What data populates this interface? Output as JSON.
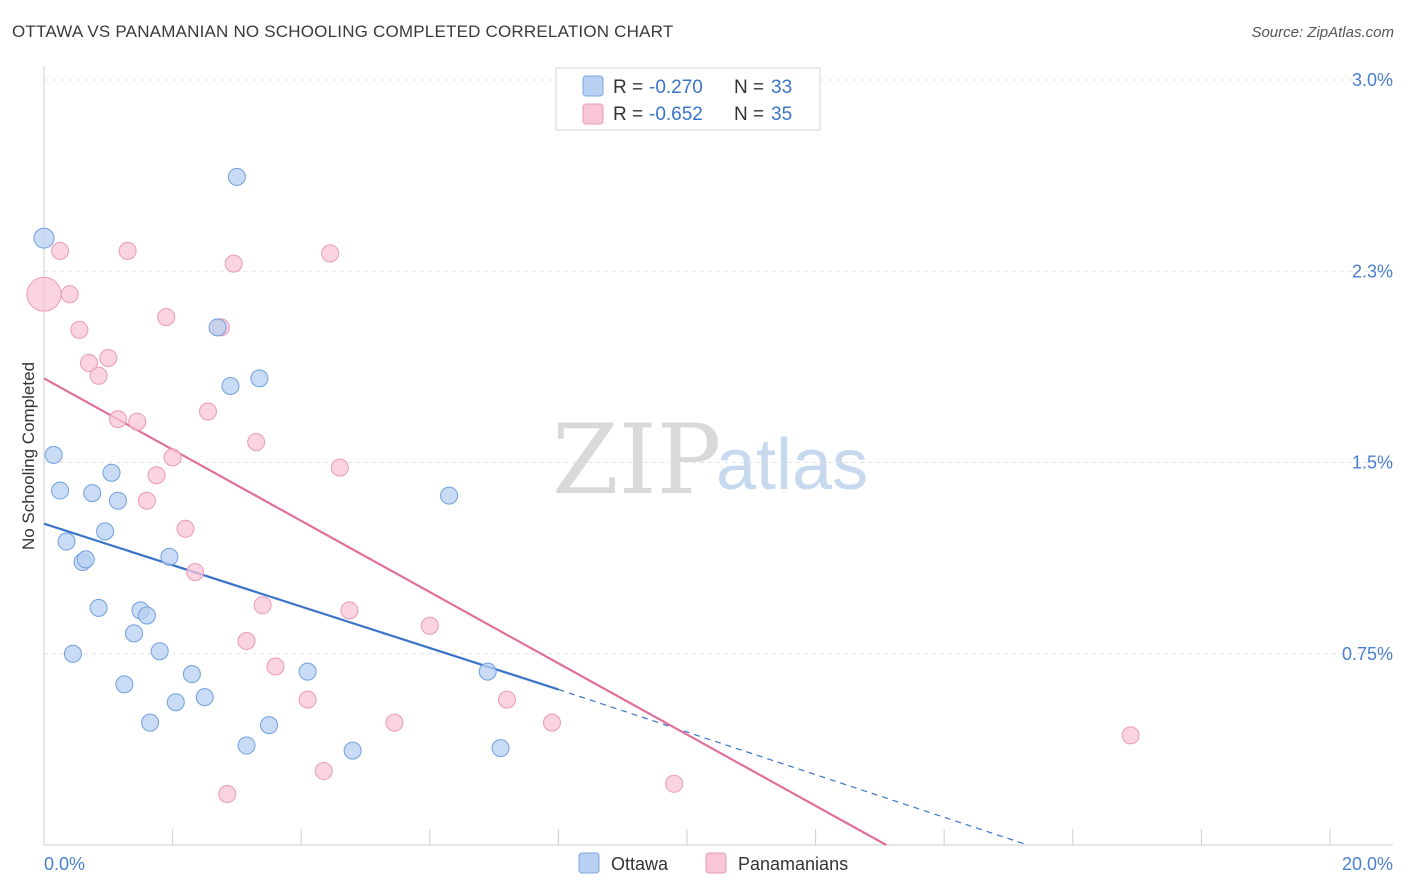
{
  "title": "OTTAWA VS PANAMANIAN NO SCHOOLING COMPLETED CORRELATION CHART",
  "source": "Source: ZipAtlas.com",
  "colors": {
    "blue": "#3a74c9",
    "blue_fill": "#b8d0f2",
    "pink": "#e0709a",
    "pink_fill": "#f8c6d6",
    "tick": "#4a7fd0"
  },
  "legend": {
    "r_label": "R =",
    "n_label": "N =",
    "rows": [
      {
        "r": "-0.270",
        "n": "33"
      },
      {
        "r": "-0.652",
        "n": "35"
      }
    ]
  },
  "watermark": {
    "zip": "ZIP",
    "atlas": "atlas"
  },
  "chart_data": {
    "type": "scatter",
    "title": "OTTAWA VS PANAMANIAN NO SCHOOLING COMPLETED CORRELATION CHART",
    "ylabel": "No Schooling Completed",
    "xlabel": "",
    "xlim": [
      0,
      20
    ],
    "ylim": [
      0,
      3.0
    ],
    "y_ticks": [
      {
        "value": 0.75,
        "label": "0.75%"
      },
      {
        "value": 1.5,
        "label": "1.5%"
      },
      {
        "value": 2.25,
        "label": "2.3%"
      },
      {
        "value": 3.0,
        "label": "3.0%"
      }
    ],
    "x_tick_labels": {
      "min": "0.0%",
      "max": "20.0%"
    },
    "series": [
      {
        "name": "Ottawa",
        "points": [
          [
            0.0,
            2.38
          ],
          [
            0.15,
            1.53
          ],
          [
            0.25,
            1.39
          ],
          [
            0.35,
            1.19
          ],
          [
            0.45,
            0.75
          ],
          [
            0.6,
            1.11
          ],
          [
            0.65,
            1.12
          ],
          [
            0.75,
            1.38
          ],
          [
            0.85,
            0.93
          ],
          [
            0.95,
            1.23
          ],
          [
            1.05,
            1.46
          ],
          [
            1.15,
            1.35
          ],
          [
            1.25,
            0.63
          ],
          [
            1.4,
            0.83
          ],
          [
            1.5,
            0.92
          ],
          [
            1.6,
            0.9
          ],
          [
            1.65,
            0.48
          ],
          [
            1.8,
            0.76
          ],
          [
            1.95,
            1.13
          ],
          [
            2.05,
            0.56
          ],
          [
            2.3,
            0.67
          ],
          [
            2.5,
            0.58
          ],
          [
            2.7,
            2.03
          ],
          [
            2.9,
            1.8
          ],
          [
            3.0,
            2.62
          ],
          [
            3.15,
            0.39
          ],
          [
            3.35,
            1.83
          ],
          [
            3.5,
            0.47
          ],
          [
            4.1,
            0.68
          ],
          [
            4.8,
            0.37
          ],
          [
            6.3,
            1.37
          ],
          [
            6.9,
            0.68
          ],
          [
            7.1,
            0.38
          ]
        ],
        "trend": {
          "x0": 0,
          "y0": 1.26,
          "x1": 8.0,
          "y1": 0.61,
          "dash_to_x": 15.3,
          "dash_to_y": 0.0
        }
      },
      {
        "name": "Panamanians",
        "points": [
          [
            0.0,
            2.16
          ],
          [
            0.25,
            2.33
          ],
          [
            0.4,
            2.16
          ],
          [
            0.55,
            2.02
          ],
          [
            0.7,
            1.89
          ],
          [
            0.85,
            1.84
          ],
          [
            1.0,
            1.91
          ],
          [
            1.15,
            1.67
          ],
          [
            1.3,
            2.33
          ],
          [
            1.45,
            1.66
          ],
          [
            1.6,
            1.35
          ],
          [
            1.75,
            1.45
          ],
          [
            1.9,
            2.07
          ],
          [
            2.0,
            1.52
          ],
          [
            2.2,
            1.24
          ],
          [
            2.35,
            1.07
          ],
          [
            2.55,
            1.7
          ],
          [
            2.75,
            2.03
          ],
          [
            2.85,
            0.2
          ],
          [
            2.95,
            2.28
          ],
          [
            3.15,
            0.8
          ],
          [
            3.3,
            1.58
          ],
          [
            3.4,
            0.94
          ],
          [
            3.6,
            0.7
          ],
          [
            4.1,
            0.57
          ],
          [
            4.35,
            0.29
          ],
          [
            4.45,
            2.32
          ],
          [
            4.6,
            1.48
          ],
          [
            4.75,
            0.92
          ],
          [
            5.45,
            0.48
          ],
          [
            6.0,
            0.86
          ],
          [
            7.2,
            0.57
          ],
          [
            7.9,
            0.48
          ],
          [
            9.8,
            0.24
          ],
          [
            16.9,
            0.43
          ]
        ],
        "trend": {
          "x0": 0,
          "y0": 1.83,
          "x1": 13.1,
          "y1": 0.0
        }
      }
    ]
  }
}
